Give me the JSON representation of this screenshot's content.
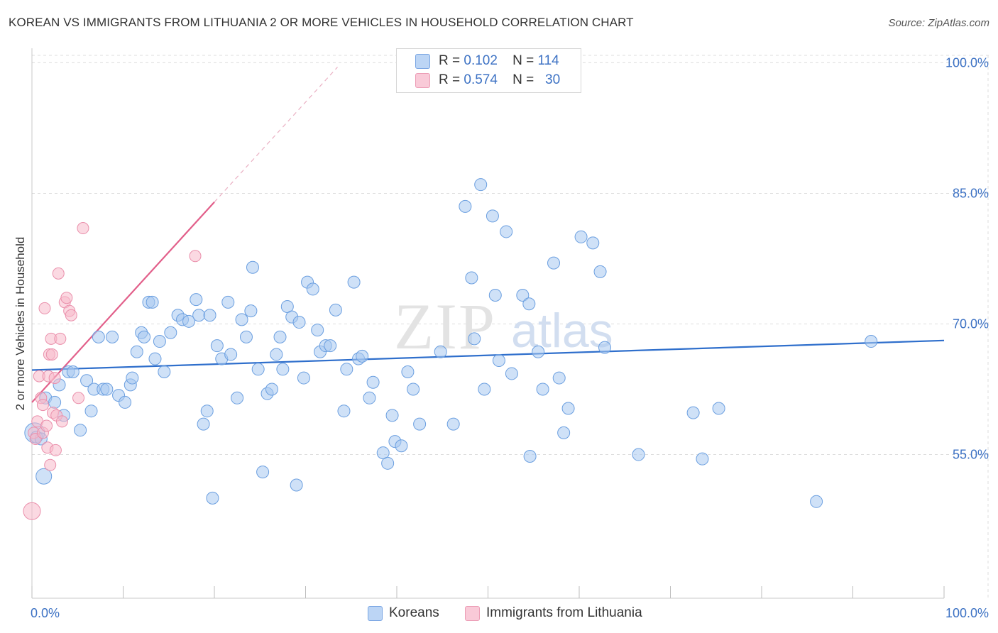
{
  "header": {
    "title": "KOREAN VS IMMIGRANTS FROM LITHUANIA 2 OR MORE VEHICLES IN HOUSEHOLD CORRELATION CHART",
    "source": "Source: ZipAtlas.com"
  },
  "legend": {
    "rows": [
      {
        "r_label": "R =",
        "r_value": "0.102",
        "n_label": "N =",
        "n_value": "114"
      },
      {
        "r_label": "R =",
        "r_value": "0.574",
        "n_label": "N =",
        "n_value": "30"
      }
    ]
  },
  "watermark": {
    "zip": "ZIP",
    "atlas": "atlas"
  },
  "colors": {
    "koreans_fill": "#a8c8f0",
    "koreans_stroke": "#6b9fe0",
    "koreans_line": "#2f6fcc",
    "lithuania_fill": "#f7b9cb",
    "lithuania_stroke": "#ea8fab",
    "lithuania_line": "#e25f8a",
    "tick_text": "#3d72c4",
    "grid": "#dddddd"
  },
  "chart_data": {
    "type": "scatter",
    "title": "KOREAN VS IMMIGRANTS FROM LITHUANIA 2 OR MORE VEHICLES IN HOUSEHOLD CORRELATION CHART",
    "xlabel": "",
    "ylabel": "2 or more Vehicles in Household",
    "xlim": [
      0,
      100
    ],
    "ylim": [
      38.5,
      101.5
    ],
    "x_tick_labels": [
      "0.0%",
      "100.0%"
    ],
    "y_ticks": [
      55,
      70,
      85,
      100
    ],
    "y_tick_labels": [
      "55.0%",
      "70.0%",
      "85.0%",
      "100.0%"
    ],
    "grid": true,
    "legend_position": "bottom",
    "series": [
      {
        "name": "Koreans",
        "points": [
          [
            0.3,
            57.5
          ],
          [
            0.5,
            57.0
          ],
          [
            1.0,
            56.8
          ],
          [
            1.3,
            52.5
          ],
          [
            1.5,
            61.5
          ],
          [
            2.5,
            61.0
          ],
          [
            3.0,
            63.0
          ],
          [
            3.5,
            59.5
          ],
          [
            4.0,
            64.5
          ],
          [
            4.5,
            64.5
          ],
          [
            5.3,
            57.8
          ],
          [
            6.0,
            63.5
          ],
          [
            6.5,
            60.0
          ],
          [
            6.8,
            62.5
          ],
          [
            7.3,
            68.5
          ],
          [
            7.8,
            62.5
          ],
          [
            8.2,
            62.5
          ],
          [
            8.8,
            68.5
          ],
          [
            9.5,
            61.8
          ],
          [
            10.2,
            61.0
          ],
          [
            10.8,
            63.0
          ],
          [
            11.0,
            63.8
          ],
          [
            11.5,
            66.8
          ],
          [
            12.0,
            69.0
          ],
          [
            12.3,
            68.5
          ],
          [
            12.8,
            72.5
          ],
          [
            13.2,
            72.5
          ],
          [
            13.5,
            66.0
          ],
          [
            14.0,
            68.0
          ],
          [
            14.5,
            64.5
          ],
          [
            15.2,
            69.0
          ],
          [
            16.0,
            71.0
          ],
          [
            16.5,
            70.5
          ],
          [
            17.2,
            70.3
          ],
          [
            18.0,
            72.8
          ],
          [
            18.3,
            71.0
          ],
          [
            18.8,
            58.5
          ],
          [
            19.2,
            60.0
          ],
          [
            19.5,
            71.0
          ],
          [
            19.8,
            50.0
          ],
          [
            20.3,
            67.5
          ],
          [
            20.8,
            66.0
          ],
          [
            21.5,
            72.5
          ],
          [
            21.8,
            66.5
          ],
          [
            22.5,
            61.5
          ],
          [
            23.0,
            70.5
          ],
          [
            23.5,
            68.5
          ],
          [
            24.0,
            71.5
          ],
          [
            24.2,
            76.5
          ],
          [
            24.8,
            64.8
          ],
          [
            25.3,
            53.0
          ],
          [
            25.8,
            62.0
          ],
          [
            26.3,
            62.5
          ],
          [
            26.8,
            66.5
          ],
          [
            27.2,
            68.5
          ],
          [
            27.5,
            64.8
          ],
          [
            28.0,
            72.0
          ],
          [
            28.5,
            70.8
          ],
          [
            29.0,
            51.5
          ],
          [
            29.3,
            70.2
          ],
          [
            29.8,
            63.8
          ],
          [
            30.2,
            74.8
          ],
          [
            30.8,
            74.0
          ],
          [
            31.3,
            69.3
          ],
          [
            31.6,
            66.8
          ],
          [
            32.2,
            67.5
          ],
          [
            32.7,
            67.5
          ],
          [
            33.3,
            71.6
          ],
          [
            34.2,
            60.0
          ],
          [
            34.5,
            64.8
          ],
          [
            35.3,
            74.8
          ],
          [
            35.8,
            66.0
          ],
          [
            36.2,
            66.3
          ],
          [
            37.0,
            61.5
          ],
          [
            37.4,
            63.3
          ],
          [
            38.5,
            55.2
          ],
          [
            39.0,
            54.0
          ],
          [
            39.5,
            59.5
          ],
          [
            39.8,
            56.5
          ],
          [
            40.5,
            56.0
          ],
          [
            41.2,
            64.5
          ],
          [
            41.8,
            62.5
          ],
          [
            42.5,
            58.5
          ],
          [
            44.8,
            66.8
          ],
          [
            46.2,
            58.5
          ],
          [
            47.5,
            83.5
          ],
          [
            48.2,
            75.3
          ],
          [
            48.5,
            68.3
          ],
          [
            49.2,
            86.0
          ],
          [
            49.6,
            62.5
          ],
          [
            50.5,
            82.4
          ],
          [
            50.8,
            73.3
          ],
          [
            51.2,
            65.8
          ],
          [
            52.0,
            80.6
          ],
          [
            52.6,
            64.3
          ],
          [
            53.8,
            73.3
          ],
          [
            54.5,
            72.3
          ],
          [
            54.6,
            54.8
          ],
          [
            55.5,
            66.8
          ],
          [
            56.0,
            62.5
          ],
          [
            57.2,
            77.0
          ],
          [
            57.8,
            63.8
          ],
          [
            58.3,
            57.5
          ],
          [
            58.8,
            60.3
          ],
          [
            60.2,
            80.0
          ],
          [
            61.5,
            79.3
          ],
          [
            62.3,
            76.0
          ],
          [
            62.8,
            67.3
          ],
          [
            66.5,
            55.0
          ],
          [
            72.5,
            59.8
          ],
          [
            73.5,
            54.5
          ],
          [
            75.3,
            60.3
          ],
          [
            86.0,
            49.6
          ],
          [
            92.0,
            68.0
          ]
        ],
        "trend": {
          "x": [
            0,
            100
          ],
          "y": [
            64.7,
            68.1
          ]
        }
      },
      {
        "name": "Immigrants from Lithuania",
        "points": [
          [
            0.0,
            48.5
          ],
          [
            0.2,
            57.5
          ],
          [
            0.4,
            56.8
          ],
          [
            0.6,
            58.8
          ],
          [
            0.8,
            64.0
          ],
          [
            1.0,
            61.5
          ],
          [
            1.2,
            57.5
          ],
          [
            1.2,
            60.7
          ],
          [
            1.4,
            71.8
          ],
          [
            1.6,
            58.3
          ],
          [
            1.7,
            55.8
          ],
          [
            1.8,
            64.0
          ],
          [
            1.9,
            66.5
          ],
          [
            2.0,
            53.8
          ],
          [
            2.1,
            68.3
          ],
          [
            2.2,
            66.5
          ],
          [
            2.3,
            59.8
          ],
          [
            2.5,
            63.8
          ],
          [
            2.6,
            55.5
          ],
          [
            2.7,
            59.5
          ],
          [
            2.9,
            75.8
          ],
          [
            3.1,
            68.3
          ],
          [
            3.3,
            58.8
          ],
          [
            3.6,
            72.5
          ],
          [
            3.8,
            73.0
          ],
          [
            4.1,
            71.5
          ],
          [
            4.3,
            71.0
          ],
          [
            5.1,
            61.5
          ],
          [
            5.6,
            81.0
          ],
          [
            17.9,
            77.8
          ]
        ],
        "trend_solid": {
          "x": [
            0,
            20
          ],
          "y": [
            61.0,
            84.0
          ]
        },
        "trend_dashed": {
          "x": [
            20,
            33.5
          ],
          "y": [
            84.0,
            99.5
          ]
        }
      }
    ]
  },
  "bottom_legend": {
    "koreans_label": "Koreans",
    "lithuania_label": "Immigrants from Lithuania"
  }
}
